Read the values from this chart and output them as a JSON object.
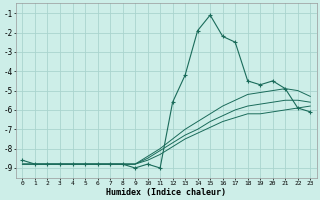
{
  "title": "",
  "xlabel": "Humidex (Indice chaleur)",
  "background_color": "#cdeee8",
  "grid_color": "#aad4ce",
  "line_color": "#1a6b5a",
  "x_values": [
    0,
    1,
    2,
    3,
    4,
    5,
    6,
    7,
    8,
    9,
    10,
    11,
    12,
    13,
    14,
    15,
    16,
    17,
    18,
    19,
    20,
    21,
    22,
    23
  ],
  "main_line": [
    -8.6,
    -8.8,
    -8.8,
    -8.8,
    -8.8,
    -8.8,
    -8.8,
    -8.8,
    -8.8,
    -9.0,
    -8.8,
    -9.0,
    -5.6,
    -4.2,
    -1.9,
    -1.1,
    -2.2,
    -2.5,
    -4.5,
    -4.7,
    -4.5,
    -4.9,
    -5.9,
    -6.1
  ],
  "line2": [
    -8.8,
    -8.8,
    -8.8,
    -8.8,
    -8.8,
    -8.8,
    -8.8,
    -8.8,
    -8.8,
    -8.8,
    -8.6,
    -8.3,
    -7.9,
    -7.5,
    -7.2,
    -6.9,
    -6.6,
    -6.4,
    -6.2,
    -6.2,
    -6.1,
    -6.0,
    -5.9,
    -5.8
  ],
  "line3": [
    -8.8,
    -8.8,
    -8.8,
    -8.8,
    -8.8,
    -8.8,
    -8.8,
    -8.8,
    -8.8,
    -8.8,
    -8.5,
    -8.1,
    -7.7,
    -7.3,
    -7.0,
    -6.6,
    -6.3,
    -6.0,
    -5.8,
    -5.7,
    -5.6,
    -5.5,
    -5.5,
    -5.6
  ],
  "line4": [
    -8.8,
    -8.8,
    -8.8,
    -8.8,
    -8.8,
    -8.8,
    -8.8,
    -8.8,
    -8.8,
    -8.8,
    -8.4,
    -8.0,
    -7.5,
    -7.0,
    -6.6,
    -6.2,
    -5.8,
    -5.5,
    -5.2,
    -5.1,
    -5.0,
    -4.9,
    -5.0,
    -5.3
  ],
  "ylim": [
    -9.5,
    -0.5
  ],
  "xlim": [
    -0.5,
    23.5
  ],
  "yticks": [
    -9,
    -8,
    -7,
    -6,
    -5,
    -4,
    -3,
    -2,
    -1
  ],
  "figwidth": 3.2,
  "figheight": 2.0,
  "dpi": 100
}
